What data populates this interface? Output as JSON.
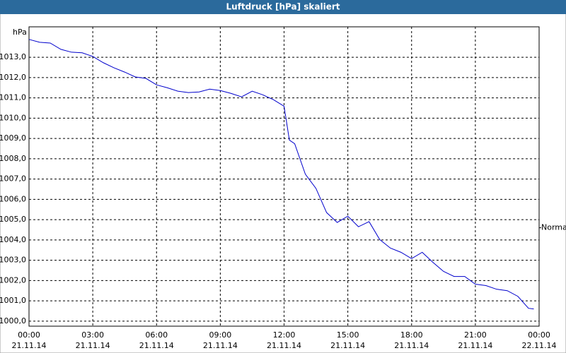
{
  "chart_data": {
    "type": "line",
    "title": "Luftdruck [hPa] skaliert",
    "ylabel": "hPa",
    "x": [
      0,
      0.5,
      1,
      1.5,
      2,
      2.5,
      3,
      3.5,
      4,
      4.5,
      5,
      5.5,
      6,
      6.5,
      7,
      7.5,
      8,
      8.5,
      9,
      9.5,
      10,
      10.5,
      11,
      11.5,
      12,
      12.25,
      12.5,
      13,
      13.5,
      14,
      14.5,
      15,
      15.5,
      16,
      16.5,
      17,
      17.5,
      18,
      18.5,
      19,
      19.5,
      20,
      20.5,
      21,
      21.5,
      22,
      22.5,
      23,
      23.5,
      23.75
    ],
    "series": [
      {
        "name": "Luftdruck",
        "color": "#0000cc",
        "values": [
          1013.88,
          1013.74,
          1013.7,
          1013.39,
          1013.25,
          1013.22,
          1013.04,
          1012.73,
          1012.48,
          1012.27,
          1012.03,
          1011.96,
          1011.64,
          1011.5,
          1011.33,
          1011.26,
          1011.29,
          1011.43,
          1011.36,
          1011.22,
          1011.05,
          1011.33,
          1011.15,
          1010.91,
          1010.59,
          1008.92,
          1008.74,
          1007.24,
          1006.54,
          1005.35,
          1004.86,
          1005.17,
          1004.65,
          1004.9,
          1004.02,
          1003.6,
          1003.39,
          1003.08,
          1003.39,
          1002.9,
          1002.45,
          1002.2,
          1002.2,
          1001.82,
          1001.75,
          1001.57,
          1001.5,
          1001.22,
          1000.63,
          1000.6
        ]
      }
    ],
    "xlim": [
      0,
      24
    ],
    "xticks": [
      {
        "value": 0,
        "label": "00:00",
        "date": "21.11.14"
      },
      {
        "value": 3,
        "label": "03:00",
        "date": "21.11.14"
      },
      {
        "value": 6,
        "label": "06:00",
        "date": "21.11.14"
      },
      {
        "value": 9,
        "label": "09:00",
        "date": "21.11.14"
      },
      {
        "value": 12,
        "label": "12:00",
        "date": "21.11.14"
      },
      {
        "value": 15,
        "label": "15:00",
        "date": "21.11.14"
      },
      {
        "value": 18,
        "label": "18:00",
        "date": "21.11.14"
      },
      {
        "value": 21,
        "label": "21:00",
        "date": "21.11.14"
      },
      {
        "value": 24,
        "label": "00:00",
        "date": "22.11.14"
      }
    ],
    "ylim": [
      999.75,
      1014.5
    ],
    "yticks": [
      {
        "value": 1000,
        "label": "1000,0"
      },
      {
        "value": 1001,
        "label": "1001,0"
      },
      {
        "value": 1002,
        "label": "1002,0"
      },
      {
        "value": 1003,
        "label": "1003,0"
      },
      {
        "value": 1004,
        "label": "1004,0"
      },
      {
        "value": 1005,
        "label": "1005,0"
      },
      {
        "value": 1006,
        "label": "1006,0"
      },
      {
        "value": 1007,
        "label": "1007,0"
      },
      {
        "value": 1008,
        "label": "1008,0"
      },
      {
        "value": 1009,
        "label": "1009,0"
      },
      {
        "value": 1010,
        "label": "1010,0"
      },
      {
        "value": 1011,
        "label": "1011,0"
      },
      {
        "value": 1012,
        "label": "1012,0"
      },
      {
        "value": 1013,
        "label": "1013,0"
      }
    ],
    "grid": true,
    "annotation": {
      "text": "Normal",
      "value": 1004.6
    }
  }
}
